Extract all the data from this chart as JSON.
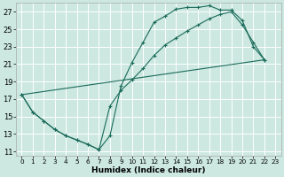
{
  "title": "",
  "xlabel": "Humidex (Indice chaleur)",
  "bg_color": "#cce8e0",
  "grid_color": "#ffffff",
  "line_color": "#1a6b5a",
  "xlim": [
    -0.5,
    23.5
  ],
  "ylim": [
    10.5,
    28.0
  ],
  "xticks": [
    0,
    1,
    2,
    3,
    4,
    5,
    6,
    7,
    8,
    9,
    10,
    11,
    12,
    13,
    14,
    15,
    16,
    17,
    18,
    19,
    20,
    21,
    22,
    23
  ],
  "yticks": [
    11,
    13,
    15,
    17,
    19,
    21,
    23,
    25,
    27
  ],
  "line1_x": [
    0,
    1,
    2,
    3,
    4,
    5,
    6,
    7,
    8,
    9,
    10,
    11,
    12,
    13,
    14,
    15,
    16,
    17,
    18,
    19,
    20,
    21,
    22
  ],
  "line1_y": [
    17.5,
    15.5,
    14.5,
    13.5,
    12.8,
    12.3,
    11.8,
    11.2,
    12.8,
    18.5,
    21.2,
    23.5,
    25.8,
    26.5,
    27.3,
    27.5,
    27.5,
    27.7,
    27.2,
    27.2,
    26.0,
    23.0,
    21.5
  ],
  "line2_x": [
    0,
    1,
    2,
    3,
    4,
    5,
    6,
    7,
    8,
    9,
    10,
    11,
    12,
    13,
    14,
    15,
    16,
    17,
    18,
    19,
    20,
    21,
    22
  ],
  "line2_y": [
    17.5,
    15.5,
    14.5,
    13.5,
    12.8,
    12.3,
    11.8,
    11.2,
    16.2,
    18.0,
    19.2,
    20.5,
    22.0,
    23.2,
    24.0,
    24.8,
    25.5,
    26.2,
    26.7,
    27.0,
    25.5,
    23.5,
    21.5
  ],
  "line3_x": [
    0,
    22
  ],
  "line3_y": [
    17.5,
    21.5
  ]
}
